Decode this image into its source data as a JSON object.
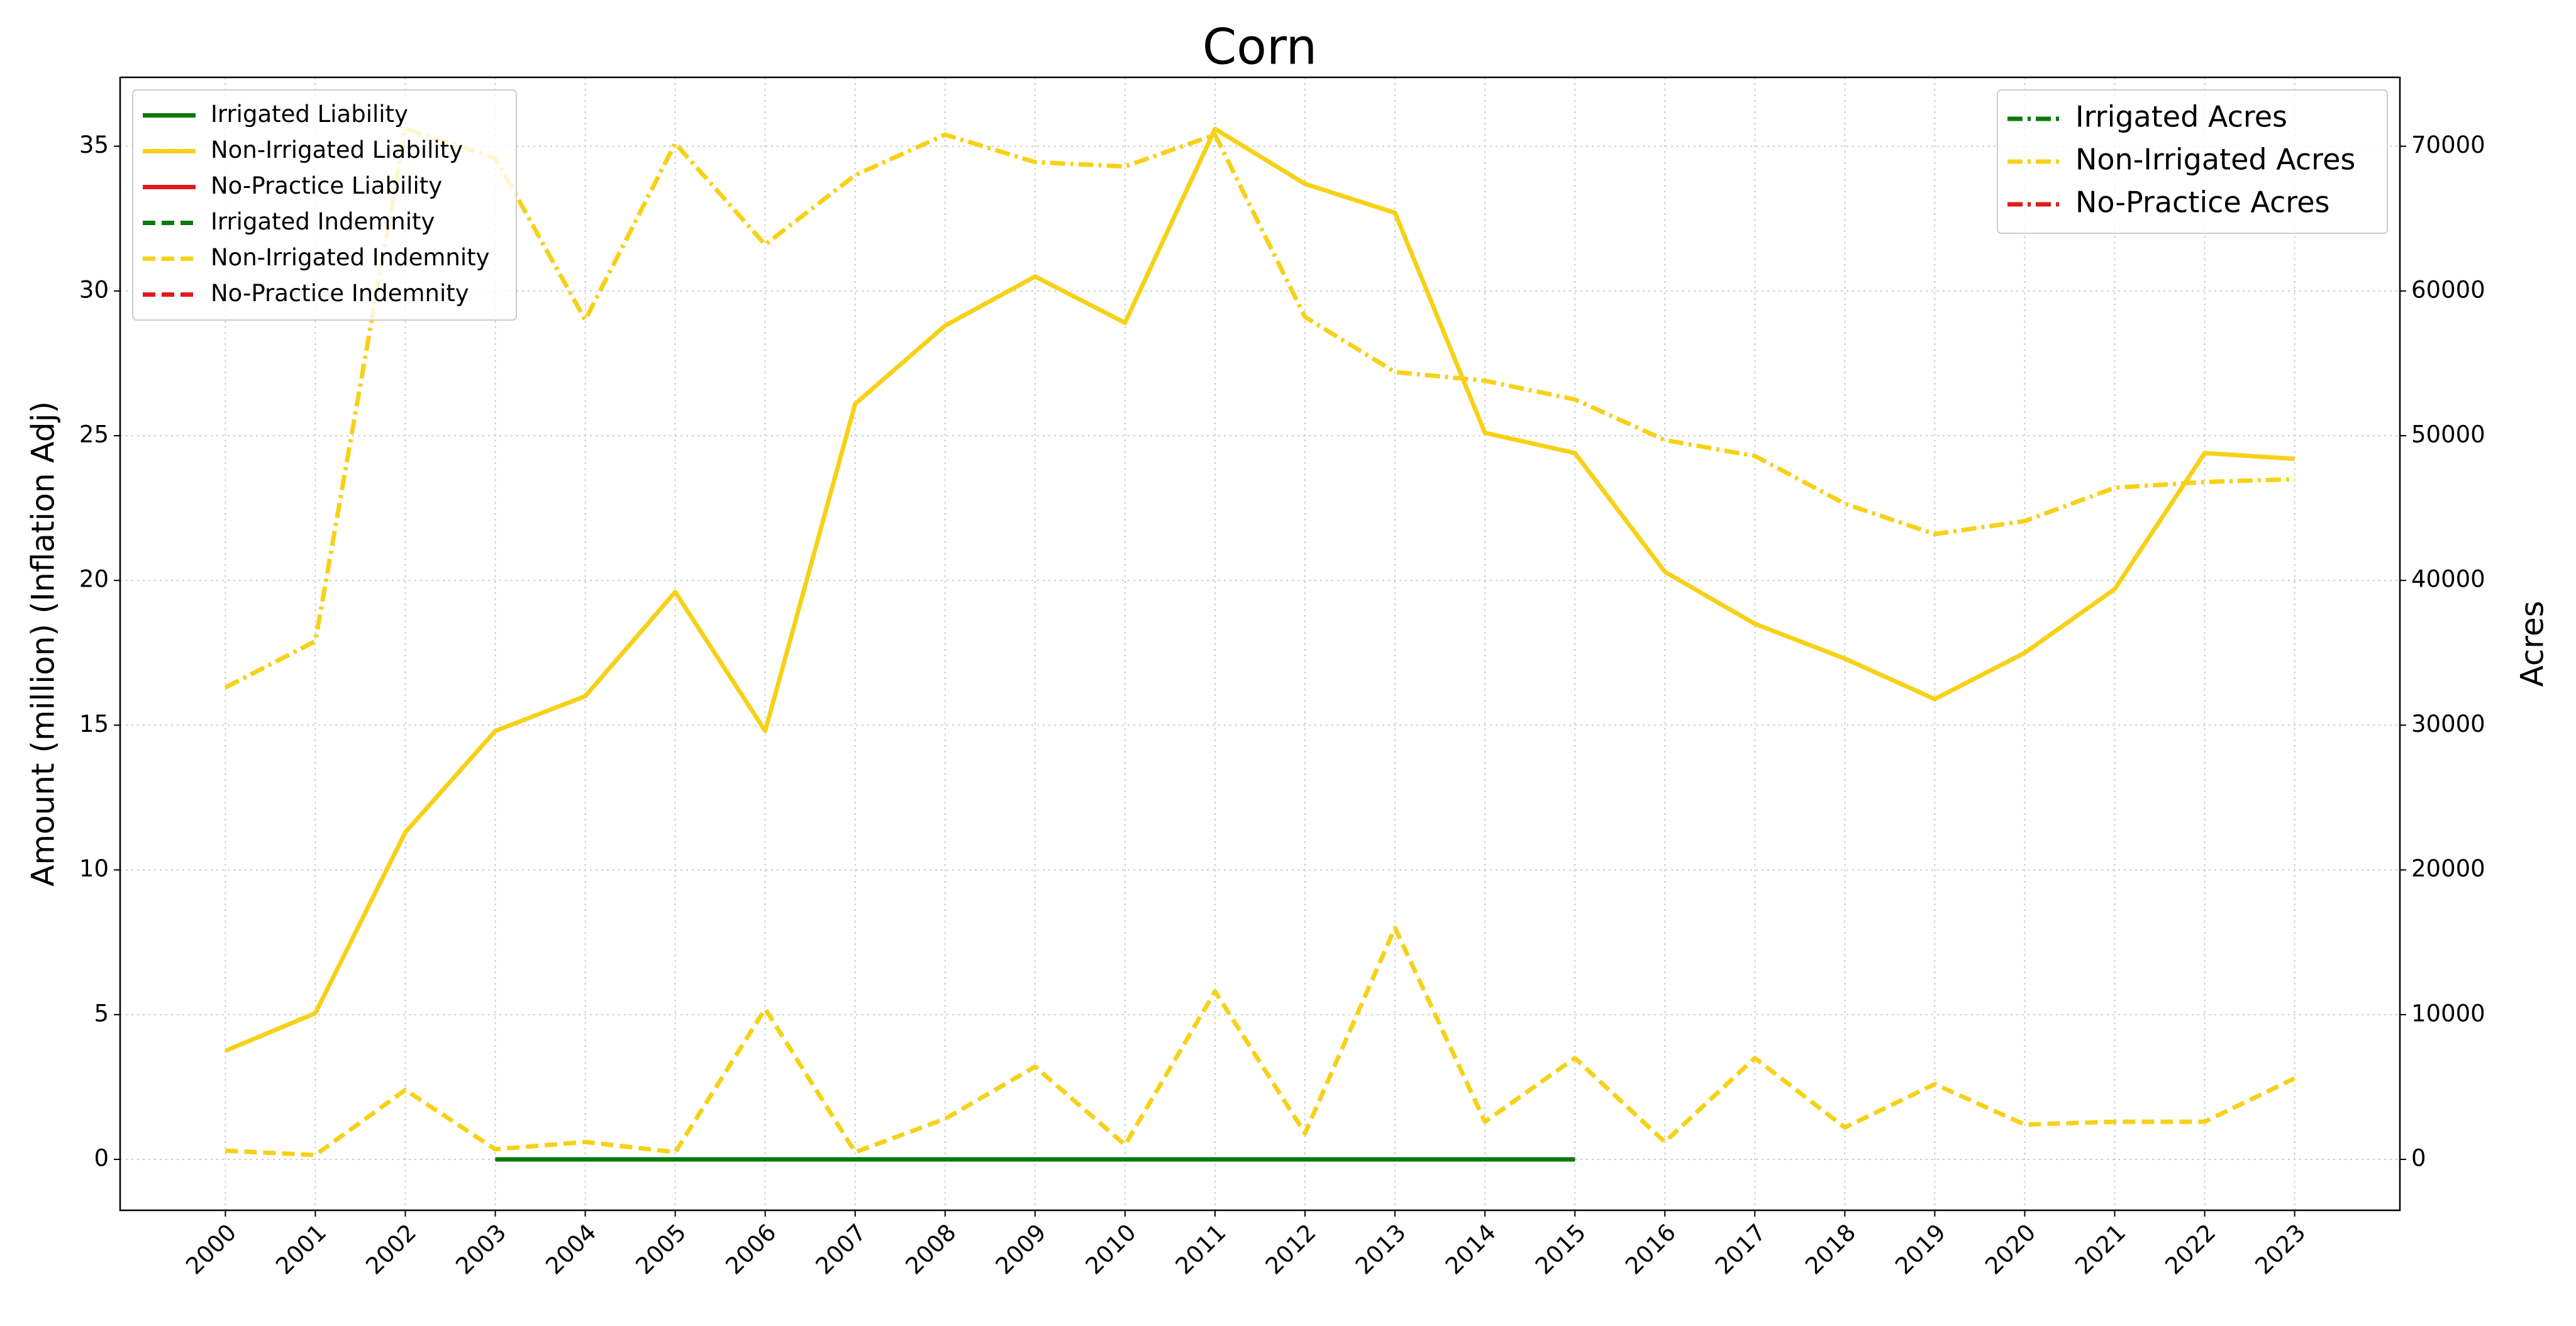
{
  "chart_data": {
    "type": "line",
    "title": "Corn",
    "y_label": "Amount (million) (Inflation Adj)",
    "y2_label": "Acres",
    "categories": [
      "2000",
      "2001",
      "2002",
      "2003",
      "2004",
      "2005",
      "2006",
      "2007",
      "2008",
      "2009",
      "2010",
      "2011",
      "2012",
      "2013",
      "2014",
      "2015",
      "2016",
      "2017",
      "2018",
      "2019",
      "2020",
      "2021",
      "2022",
      "2023"
    ],
    "ylim": [
      -1.76,
      37.38
    ],
    "yticks": [
      0,
      5,
      10,
      15,
      20,
      25,
      30,
      35
    ],
    "y2lim": [
      -3520,
      74760
    ],
    "y2ticks": [
      0,
      10000,
      20000,
      30000,
      40000,
      50000,
      60000,
      70000
    ],
    "grid": true,
    "legend": "upper left",
    "legend2": "upper right",
    "series": [
      {
        "name": "Irrigated Liability",
        "color": "#0a7a0a",
        "linestyle": "solid",
        "values": [
          null,
          null,
          null,
          0,
          0,
          0,
          0,
          0,
          0,
          0,
          0,
          0,
          0,
          0,
          0,
          0,
          null,
          null,
          null,
          null,
          null,
          null,
          null,
          null
        ]
      },
      {
        "name": "Non-Irrigated Liability",
        "color": "#f7d117",
        "linestyle": "solid",
        "values": [
          3.75,
          5.05,
          11.3,
          14.8,
          16.0,
          19.6,
          14.8,
          26.1,
          28.8,
          30.5,
          28.9,
          35.6,
          33.7,
          32.7,
          25.1,
          24.4,
          20.3,
          18.5,
          17.3,
          15.9,
          17.5,
          19.7,
          24.4,
          24.2
        ]
      },
      {
        "name": "No-Practice Liability",
        "color": "#e31a1c",
        "linestyle": "solid",
        "values": [
          null,
          null,
          null,
          null,
          null,
          null,
          null,
          null,
          null,
          null,
          null,
          null,
          null,
          null,
          null,
          null,
          null,
          null,
          null,
          null,
          null,
          null,
          null,
          null
        ]
      },
      {
        "name": "Irrigated Indemnity",
        "color": "#0a7a0a",
        "linestyle": "dashed",
        "values": [
          null,
          null,
          null,
          0,
          0,
          0,
          0,
          0,
          0,
          0,
          0,
          0,
          0,
          0,
          0,
          0,
          null,
          null,
          null,
          null,
          null,
          null,
          null,
          null
        ]
      },
      {
        "name": "Non-Irrigated Indemnity",
        "color": "#f7d117",
        "linestyle": "dashed",
        "values": [
          0.3,
          0.15,
          2.4,
          0.35,
          0.6,
          0.25,
          5.2,
          0.25,
          1.4,
          3.2,
          0.5,
          5.8,
          0.9,
          8.0,
          1.3,
          3.5,
          0.6,
          3.5,
          1.1,
          2.6,
          1.2,
          1.3,
          1.3,
          2.8
        ]
      },
      {
        "name": "No-Practice Indemnity",
        "color": "#e31a1c",
        "linestyle": "dashed",
        "values": [
          null,
          null,
          null,
          null,
          null,
          null,
          null,
          null,
          null,
          null,
          null,
          null,
          null,
          null,
          null,
          null,
          null,
          null,
          null,
          null,
          null,
          null,
          null,
          null
        ]
      },
      {
        "name": "Irrigated Acres",
        "color": "#0a7a0a",
        "linestyle": "dashdot",
        "axis": "y2",
        "values": [
          null,
          null,
          null,
          0,
          0,
          0,
          0,
          0,
          0,
          0,
          0,
          0,
          0,
          0,
          0,
          0,
          null,
          null,
          null,
          null,
          null,
          null,
          null,
          null
        ]
      },
      {
        "name": "Non-Irrigated Acres",
        "color": "#f7d117",
        "linestyle": "dashdot",
        "axis": "y2",
        "values": [
          32600,
          35800,
          71200,
          69200,
          58000,
          70200,
          63200,
          68000,
          70800,
          68900,
          68600,
          70800,
          58200,
          54400,
          53800,
          52500,
          49700,
          48600,
          45300,
          43200,
          44100,
          46400,
          46800,
          47000
        ]
      },
      {
        "name": "No-Practice Acres",
        "color": "#e31a1c",
        "linestyle": "dashdot",
        "axis": "y2",
        "values": [
          null,
          null,
          null,
          null,
          null,
          null,
          null,
          null,
          null,
          null,
          null,
          null,
          null,
          null,
          null,
          null,
          null,
          null,
          null,
          null,
          null,
          null,
          null,
          null
        ]
      }
    ]
  }
}
